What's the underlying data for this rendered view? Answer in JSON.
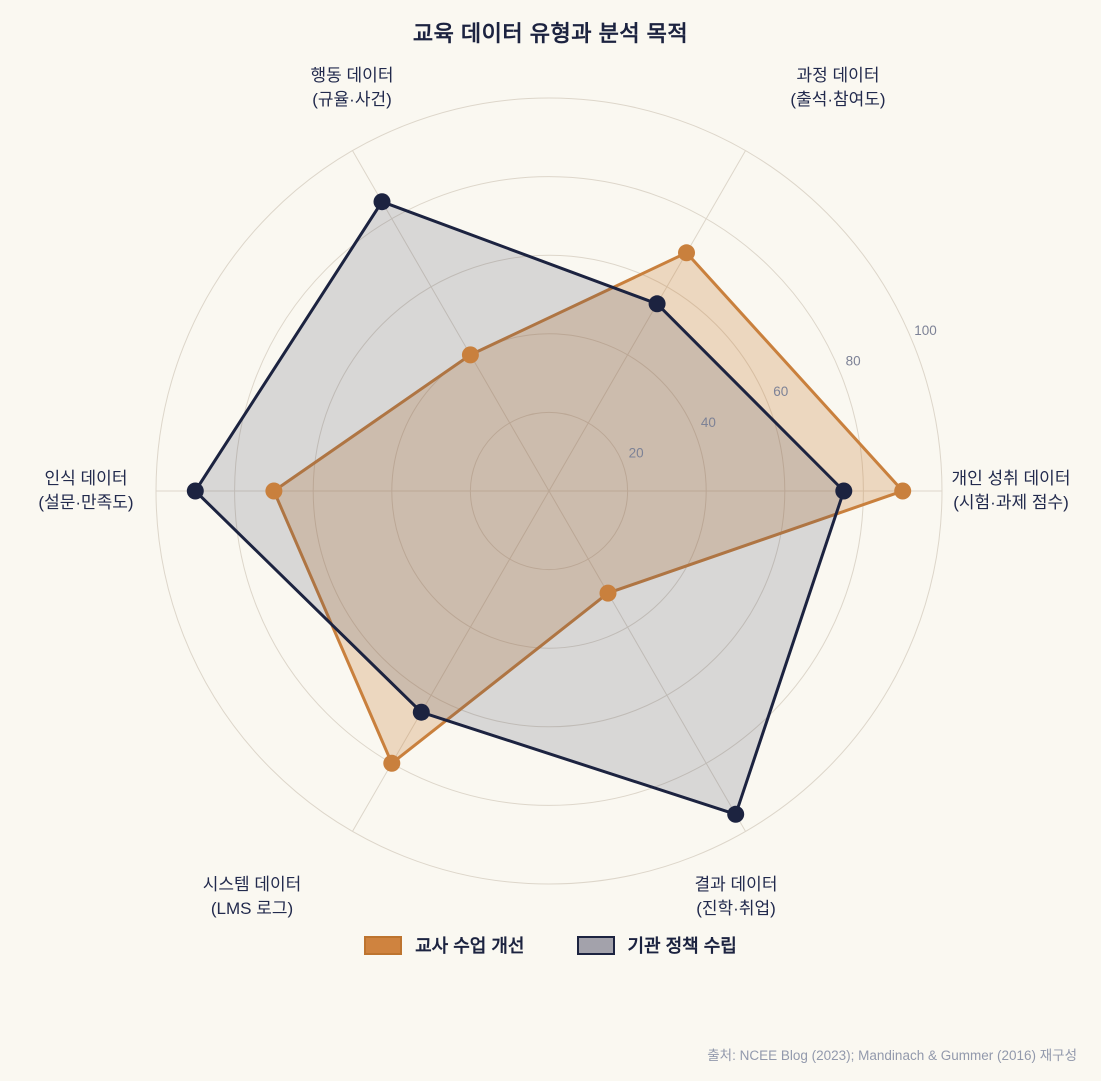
{
  "title": "교육 데이터 유형과 분석 목적",
  "chart_data": {
    "type": "radar",
    "rmax": 100,
    "ticks": [
      20,
      40,
      60,
      80,
      100
    ],
    "grid": true,
    "legend_position": "bottom",
    "axes": [
      {
        "label": "개인 성취 데이터",
        "sublabel": "(시험·과제 점수)"
      },
      {
        "label": "과정 데이터",
        "sublabel": "(출석·참여도)"
      },
      {
        "label": "행동 데이터",
        "sublabel": "(규율·사건)"
      },
      {
        "label": "인식 데이터",
        "sublabel": "(설문·만족도)"
      },
      {
        "label": "시스템 데이터",
        "sublabel": "(LMS 로그)"
      },
      {
        "label": "결과 데이터",
        "sublabel": "(진학·취업)"
      }
    ],
    "series": [
      {
        "name": "교사 수업 개선",
        "color": "#c9803d",
        "fill": "rgba(201,128,61,0.28)",
        "values": [
          90,
          70,
          40,
          70,
          80,
          30
        ]
      },
      {
        "name": "기관 정책 수립",
        "color": "#1c2340",
        "fill": "rgba(60,66,92,0.18)",
        "values": [
          75,
          55,
          85,
          90,
          65,
          95
        ]
      }
    ]
  },
  "legend": {
    "items": [
      {
        "label": "교사 수업 개선",
        "swatch_color": "#cf833f"
      },
      {
        "label": "기관 정책 수립",
        "swatch_color": "#a3a2ab"
      }
    ]
  },
  "source": "출처: NCEE Blog (2023); Mandinach & Gummer (2016) 재구성",
  "colors": {
    "background": "#faf8f1",
    "grid": "#ddd6ca",
    "title_text": "#1c2340",
    "axis_label_text": "#222a4d",
    "tick_label_text": "#7d8296",
    "source_text": "#9299ac"
  }
}
